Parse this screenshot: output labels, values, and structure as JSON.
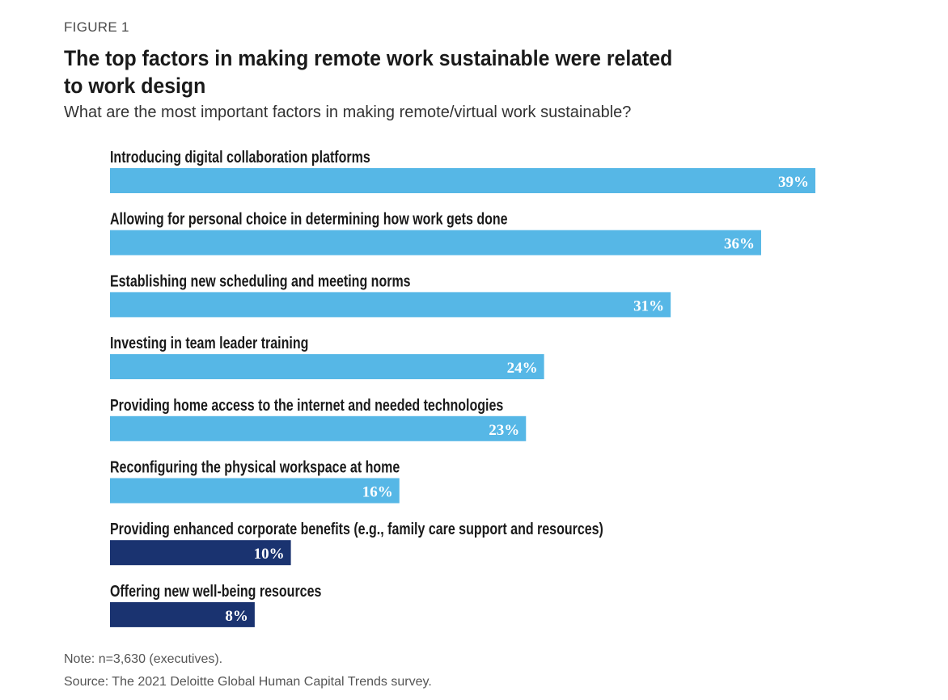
{
  "figure_label": "FIGURE 1",
  "title": "The top factors in making remote work sustainable were related to work design",
  "subtitle": "What are the most important factors in making remote/virtual work sustainable?",
  "note": "Note: n=3,630 (executives).",
  "source": "Source: The 2021 Deloitte Global Human Capital Trends survey.",
  "colors": {
    "light_bar": "#56b7e6",
    "dark_bar": "#1a3370"
  },
  "chart_data": {
    "type": "bar",
    "orientation": "horizontal",
    "categories": [
      "Introducing digital collaboration platforms",
      "Allowing for personal choice in determining how work gets done",
      "Establishing new scheduling and meeting norms",
      "Investing in team leader training",
      "Providing home access to the internet and needed technologies",
      "Reconfiguring the physical workspace at home",
      "Providing enhanced corporate benefits (e.g., family care support and resources)",
      "Offering new well-being resources"
    ],
    "values": [
      39,
      36,
      31,
      24,
      23,
      16,
      10,
      8
    ],
    "value_labels": [
      "39%",
      "36%",
      "31%",
      "24%",
      "23%",
      "16%",
      "10%",
      "8%"
    ],
    "bar_colors": [
      "light",
      "light",
      "light",
      "light",
      "light",
      "light",
      "dark",
      "dark"
    ],
    "unit": "%"
  }
}
